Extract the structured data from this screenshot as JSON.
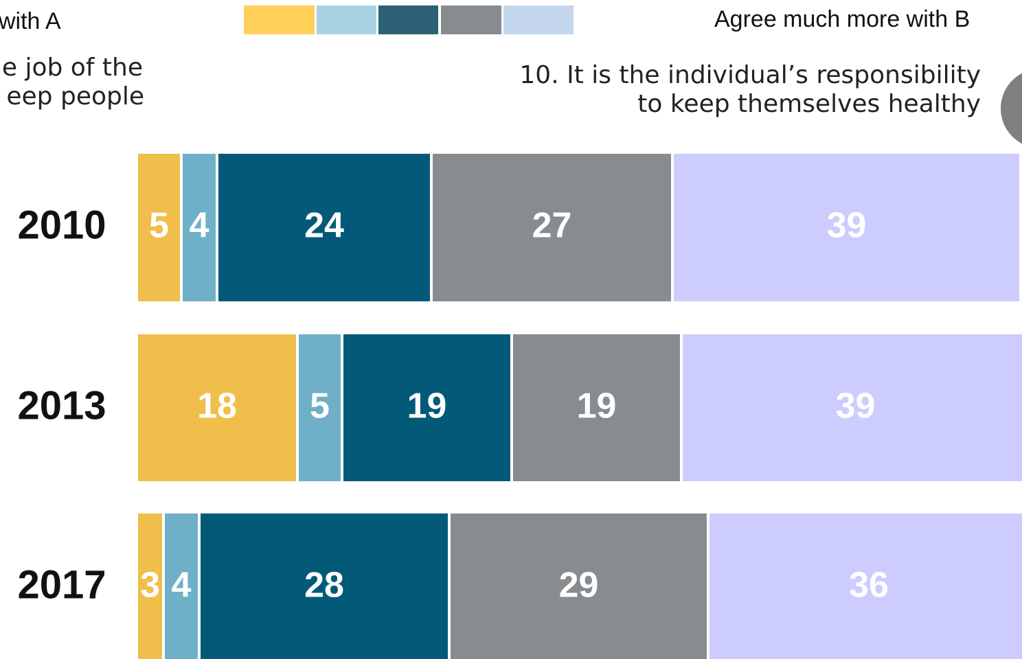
{
  "chart_data": {
    "type": "stacked-bar-horizontal",
    "legend_left": "with A",
    "legend_right": "Agree much more with B",
    "left_heading": [
      "e job of the",
      "eep people"
    ],
    "right_heading": [
      "10. It is the individual’s responsibility",
      "to keep themselves healthy"
    ],
    "legend_colors": [
      "#ffd05a",
      "#a9d3e2",
      "#2b6075",
      "#898c8f",
      "#c4d5ee"
    ],
    "categories": [
      "2010",
      "2013",
      "2017"
    ],
    "series": [
      {
        "color": "#f0be4a",
        "values": [
          5,
          18,
          3
        ]
      },
      {
        "color": "#6fb0c8",
        "values": [
          4,
          5,
          4
        ]
      },
      {
        "color": "#025a78",
        "values": [
          24,
          19,
          28
        ]
      },
      {
        "color": "#898c8f",
        "values": [
          27,
          19,
          29
        ]
      },
      {
        "color": "#ccccff",
        "values": [
          39,
          39,
          36
        ]
      }
    ],
    "xlim": [
      0,
      100
    ]
  }
}
